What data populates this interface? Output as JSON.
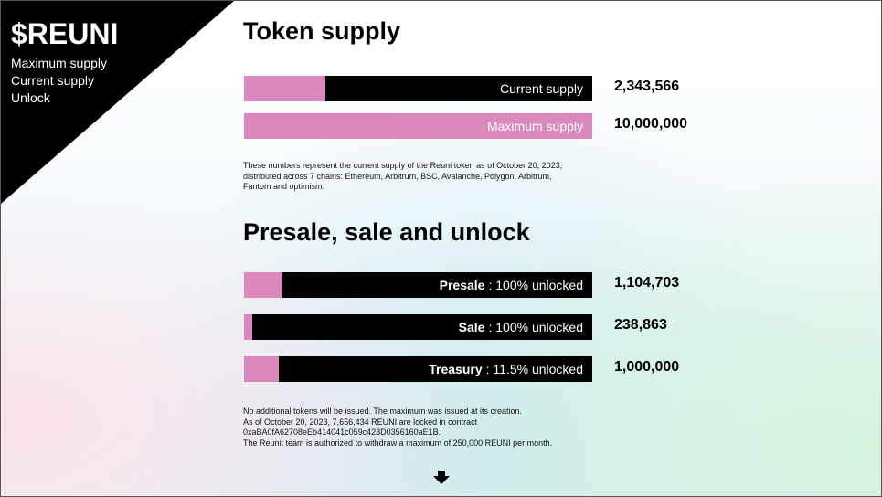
{
  "sidebar": {
    "title": "$REUNI",
    "items": [
      "Maximum supply",
      "Current supply",
      "Unlock"
    ]
  },
  "sections": [
    {
      "title": "Token supply",
      "rows": [
        {
          "label": "Current supply",
          "amount": {
            "value": 2343566,
            "label": "2,343,566"
          }
        },
        {
          "label": "Maximum supply",
          "amount": {
            "value": 10000000,
            "label": "10,000,000"
          }
        }
      ],
      "note": [
        "These numbers represent the current supply of the Reuni token as of October 20, 2023,",
        "distributed across 7 chains: Ethereum, Arbitrum, BSC, Avalanche, Polygon, Arbitrum,",
        "Fantom and optimism."
      ]
    },
    {
      "title": "Presale, sale and unlock",
      "rows": [
        {
          "name": "Presale",
          "detail": ": 100% unlocked",
          "amount": {
            "value": 1104703,
            "label": "1,104,703"
          }
        },
        {
          "name": "Sale",
          "detail": ": 100% unlocked",
          "amount": {
            "value": 238863,
            "label": "238,863"
          }
        },
        {
          "name": "Treasury",
          "detail": ": 11.5% unlocked",
          "amount": {
            "value": 1000000,
            "label": "1,000,000"
          }
        }
      ],
      "note": [
        "No additional tokens will be issued. The maximum was issued at its creation.",
        "As of October 20, 2023, 7,656,434 REUNI are locked in contract",
        "0xaBA0fA62708eEb414041c059c423D0356160aE1B.",
        "The Reunit team is authorized to withdraw a maximum of 250,000 REUNI per month."
      ]
    }
  ]
}
